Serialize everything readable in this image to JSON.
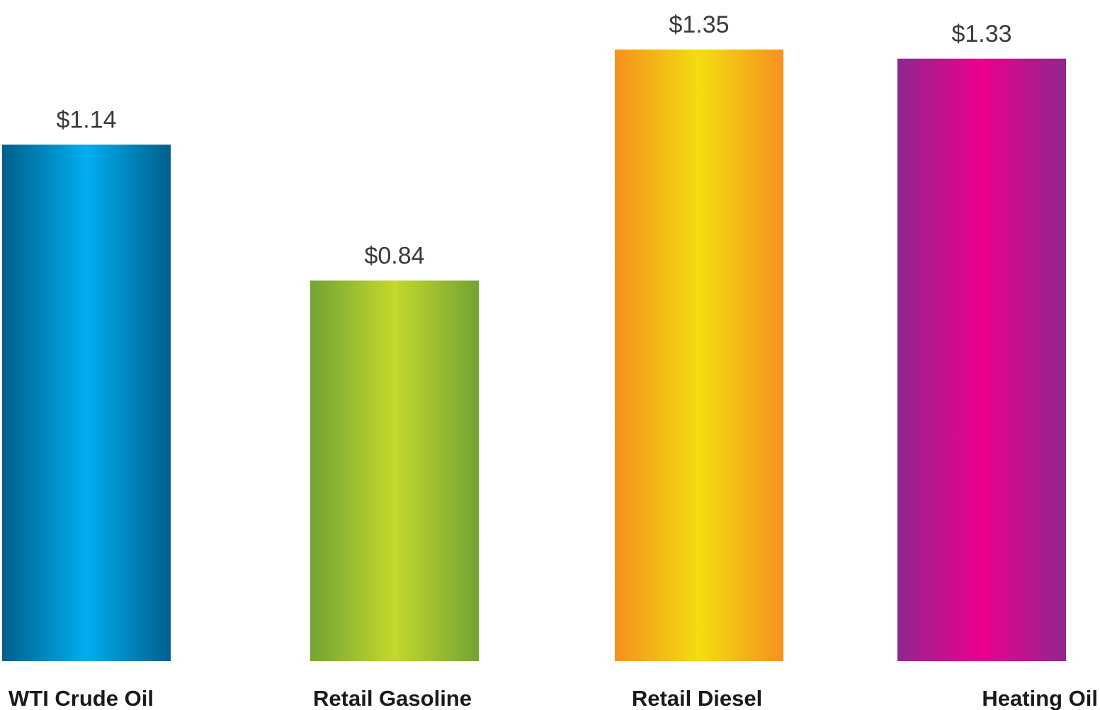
{
  "chart_data": {
    "type": "bar",
    "categories": [
      "WTI Crude Oil",
      "Retail Gasoline",
      "Retail Diesel",
      "Heating Oil"
    ],
    "values": [
      1.14,
      0.84,
      1.35,
      1.33
    ],
    "data_labels": [
      "$1.14",
      "$0.84",
      "$1.35",
      "$1.33"
    ],
    "title": "",
    "xlabel": "",
    "ylabel": "",
    "ylim": [
      0,
      1.35
    ],
    "grid": false,
    "legend": "none",
    "bar_gradients": [
      {
        "edge": "#005f8c",
        "center": "#00aeef"
      },
      {
        "edge": "#72a334",
        "center": "#c4d82e"
      },
      {
        "edge": "#f7901e",
        "center": "#f2dd10"
      },
      {
        "edge": "#90278e",
        "center": "#ec008c"
      }
    ]
  }
}
